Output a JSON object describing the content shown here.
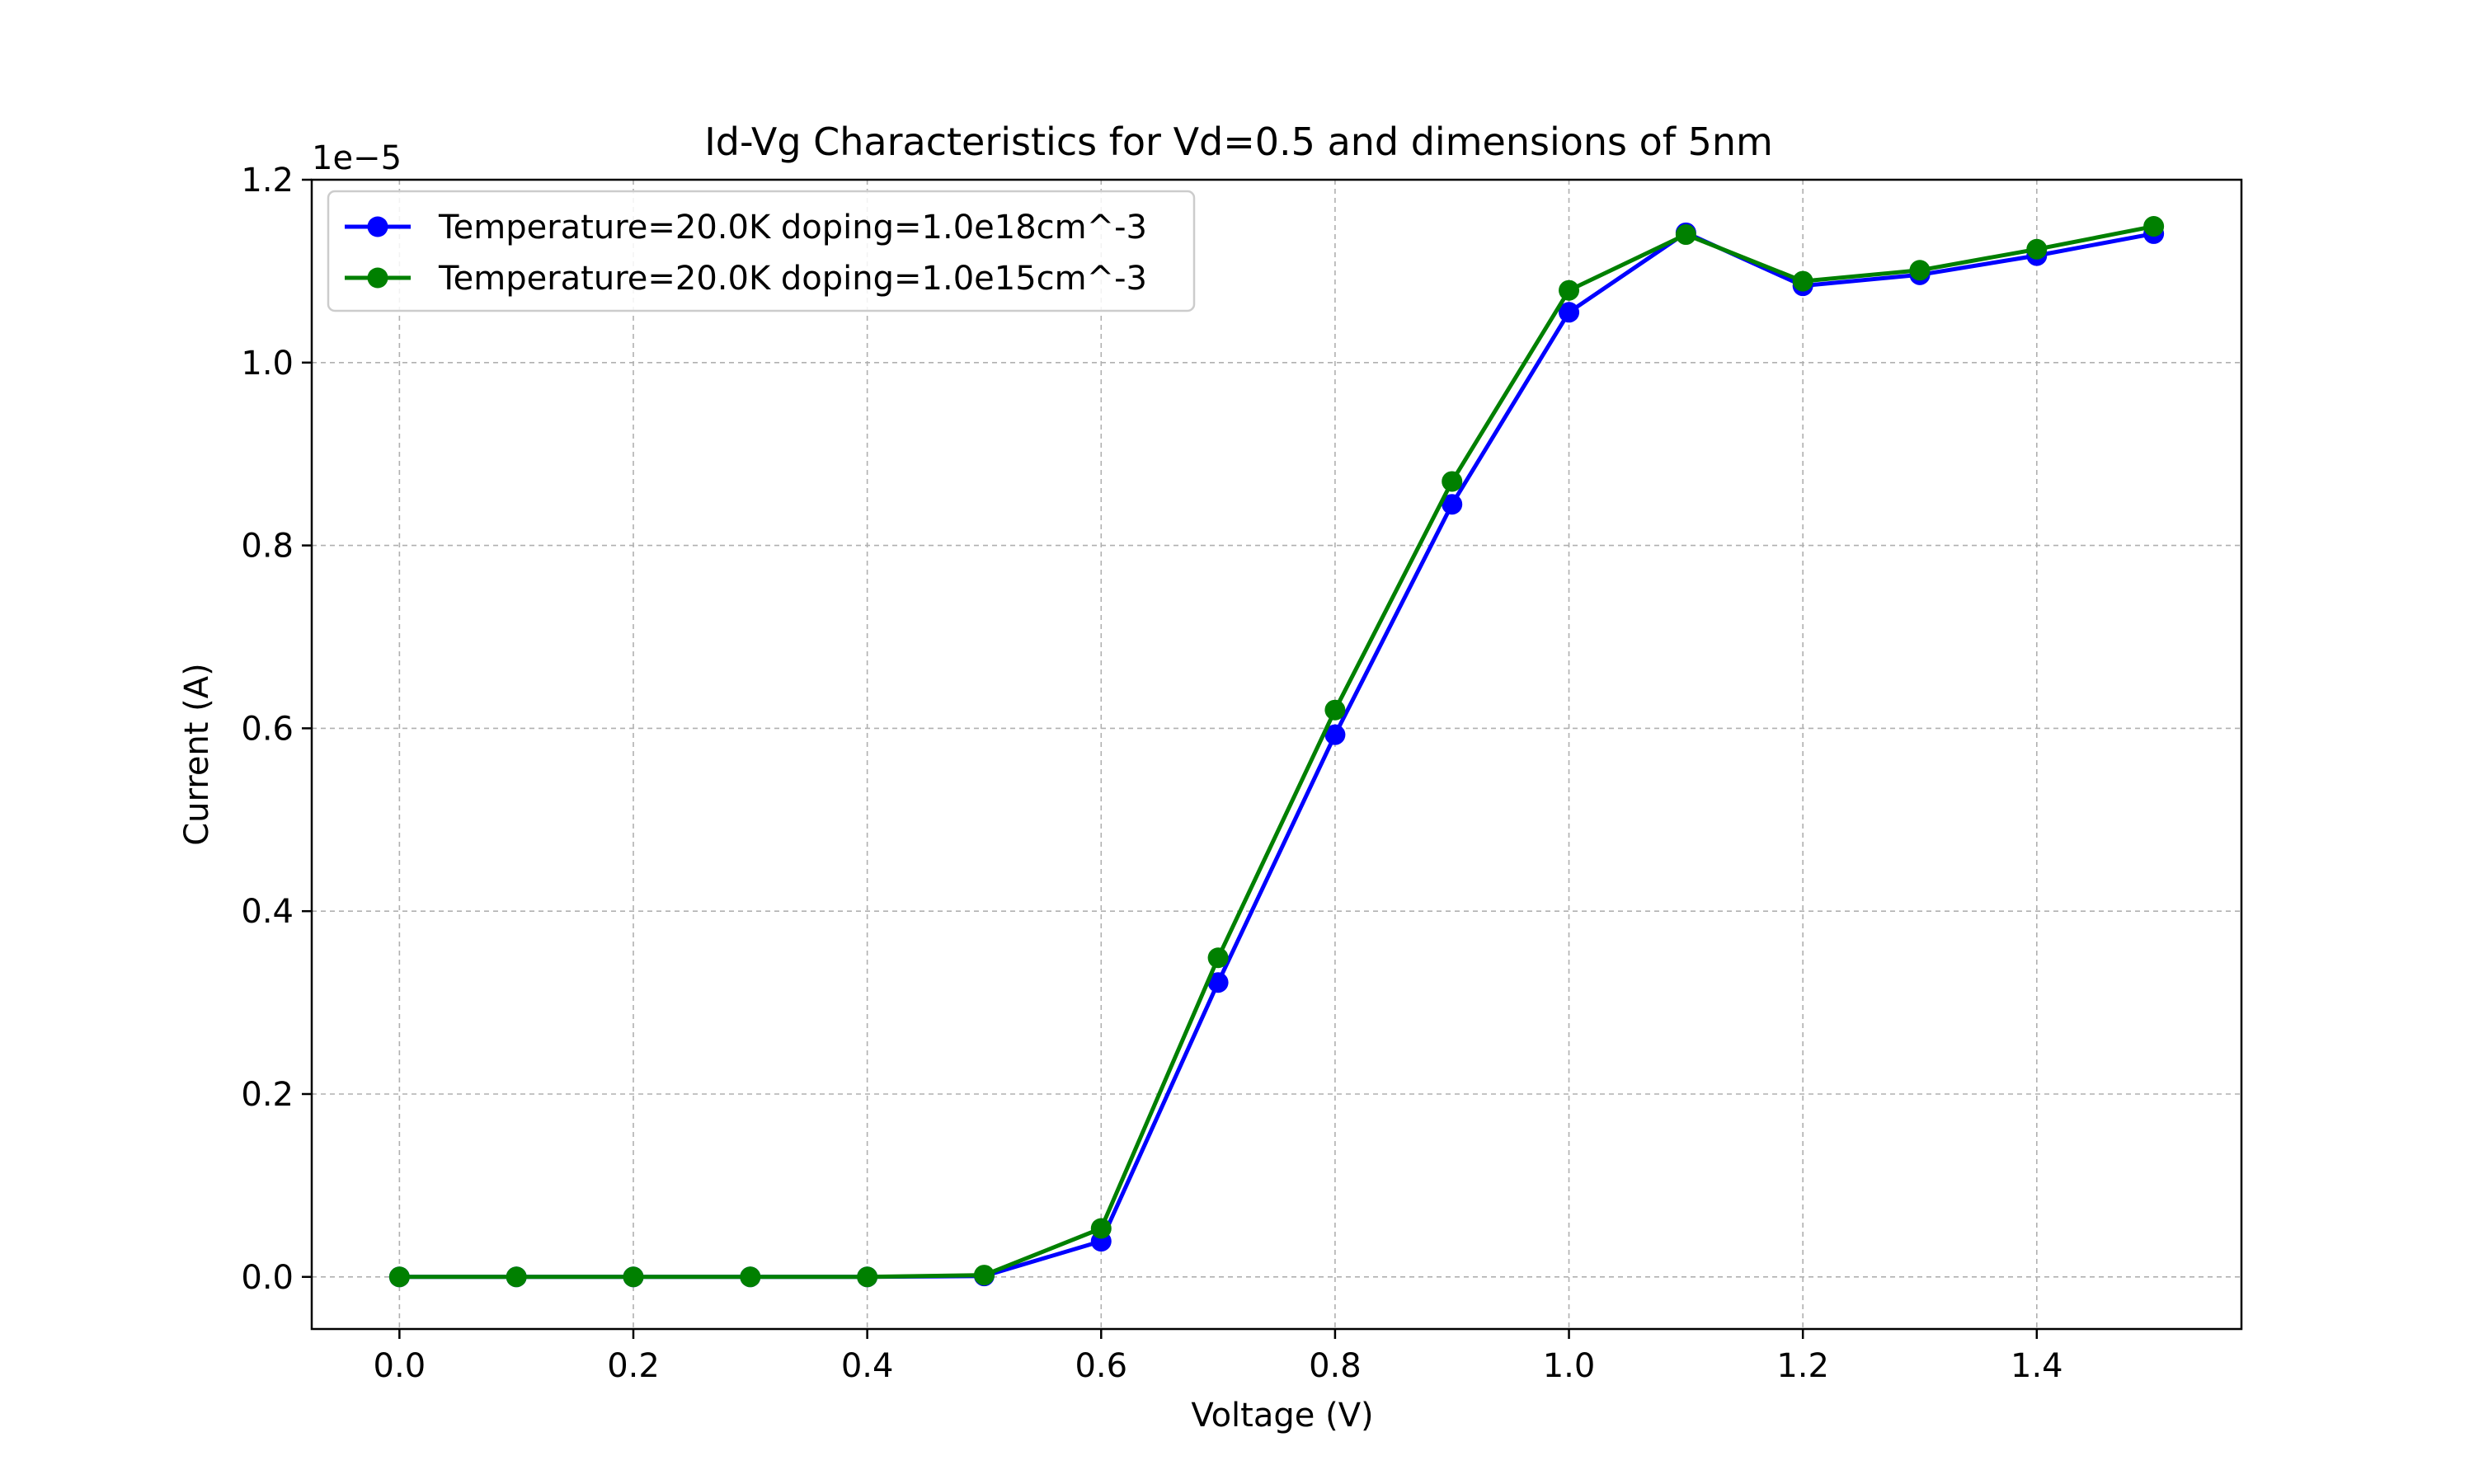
{
  "chart_data": {
    "type": "line",
    "title": "Id-Vg Characteristics for Vd=0.5 and dimensions of 5nm",
    "xlabel": "Voltage (V)",
    "ylabel": "Current (A)",
    "y_offset_label": "1e−5",
    "y_multiplier": 1e-05,
    "xlim": [
      -0.075,
      1.575
    ],
    "ylim": [
      -0.057,
      1.2
    ],
    "x_ticks": [
      "0.0",
      "0.2",
      "0.4",
      "0.6",
      "0.8",
      "1.0",
      "1.2",
      "1.4"
    ],
    "y_ticks": [
      "0.0",
      "0.2",
      "0.4",
      "0.6",
      "0.8",
      "1.0",
      "1.2"
    ],
    "grid": true,
    "legend_position": "upper-left",
    "x": [
      0.0,
      0.1,
      0.2,
      0.3,
      0.4,
      0.5,
      0.6,
      0.7,
      0.8,
      0.9,
      1.0,
      1.1,
      1.2,
      1.3,
      1.4,
      1.5
    ],
    "series": [
      {
        "name": "Temperature=20.0K doping=1.0e18cm^-3",
        "color": "#0000ff",
        "values": [
          0.0,
          0.0,
          0.0,
          0.0,
          0.0,
          0.001,
          0.039,
          0.322,
          0.593,
          0.845,
          1.055,
          1.142,
          1.084,
          1.096,
          1.117,
          1.141
        ]
      },
      {
        "name": "Temperature=20.0K doping=1.0e15cm^-3",
        "color": "#008000",
        "values": [
          0.0,
          0.0,
          0.0,
          0.0,
          0.0,
          0.002,
          0.053,
          0.349,
          0.62,
          0.87,
          1.079,
          1.14,
          1.089,
          1.101,
          1.124,
          1.149
        ]
      }
    ]
  }
}
